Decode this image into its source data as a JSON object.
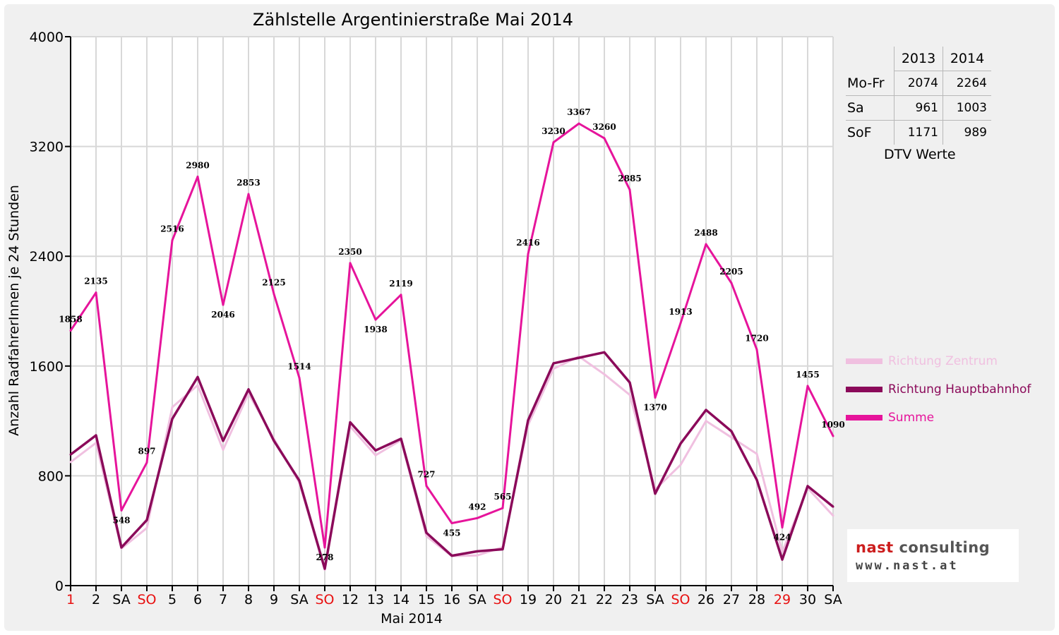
{
  "chart_data": {
    "type": "line",
    "title": "Zählstelle Argentinierstraße Mai 2014",
    "xlabel": "Mai 2014",
    "ylabel": "Anzahl RadfahrerInnen je 24 Stunden",
    "ylim": [
      0,
      4000
    ],
    "yticks": [
      0,
      800,
      1600,
      2400,
      3200,
      4000
    ],
    "grid": true,
    "legend_position": "right",
    "categories": [
      "1",
      "2",
      "SA",
      "SO",
      "5",
      "6",
      "7",
      "8",
      "9",
      "SA",
      "SO",
      "12",
      "13",
      "14",
      "15",
      "16",
      "SA",
      "SO",
      "19",
      "20",
      "21",
      "22",
      "23",
      "SA",
      "SO",
      "26",
      "27",
      "28",
      "29",
      "30",
      "SA"
    ],
    "red_categories": [
      0,
      3,
      10,
      17,
      24,
      28
    ],
    "series": [
      {
        "name": "Richtung Zentrum",
        "color": "#f0c0e0",
        "values": [
          900,
          1040,
          270,
          420,
          1300,
          1460,
          990,
          1400,
          1070,
          750,
          115,
          1160,
          950,
          1060,
          360,
          215,
          220,
          280,
          1170,
          1580,
          1670,
          1540,
          1390,
          700,
          880,
          1200,
          1080,
          960,
          245,
          710,
          510
        ]
      },
      {
        "name": "Richtung Hauptbahnhof",
        "color": "#8b0a5a",
        "values": [
          955,
          1095,
          278,
          478,
          1215,
          1520,
          1055,
          1430,
          1055,
          765,
          123,
          1190,
          985,
          1070,
          385,
          218,
          250,
          265,
          1205,
          1620,
          1660,
          1700,
          1480,
          670,
          1035,
          1280,
          1125,
          770,
          190,
          725,
          575
        ]
      },
      {
        "name": "Summe",
        "color": "#e6149b",
        "values": [
          1858,
          2135,
          548,
          897,
          2516,
          2980,
          2046,
          2853,
          2125,
          1514,
          278,
          2350,
          1938,
          2119,
          727,
          455,
          492,
          565,
          2416,
          3230,
          3367,
          3260,
          2885,
          1370,
          1913,
          2488,
          2205,
          1720,
          424,
          1455,
          1090
        ]
      }
    ]
  },
  "dtv_table": {
    "caption": "DTV Werte",
    "headers": [
      "",
      "2013",
      "2014"
    ],
    "rows": [
      {
        "label": "Mo-Fr",
        "v2013": "2074",
        "v2014": "2264"
      },
      {
        "label": "Sa",
        "v2013": "961",
        "v2014": "1003"
      },
      {
        "label": "SoF",
        "v2013": "1171",
        "v2014": "989"
      }
    ]
  },
  "logo": {
    "line1_a": "nast",
    "line1_b": "consulting",
    "line2": "www.nast.at",
    "color_a": "#cc1d1d",
    "color_b": "#555555"
  }
}
